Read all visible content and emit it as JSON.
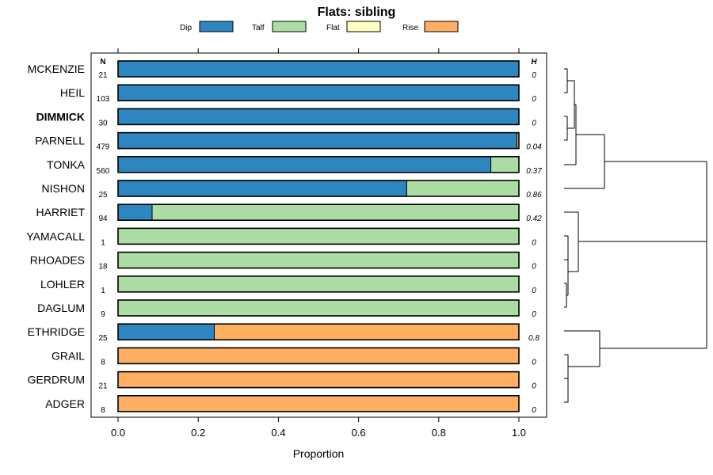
{
  "chart_data": {
    "type": "bar",
    "orientation": "horizontal",
    "stacked": true,
    "title": "Flats: sibling",
    "xlabel": "Proportion",
    "ylabel": "",
    "xlim": [
      -0.07,
      1.07
    ],
    "x_ticks": [
      0.0,
      0.2,
      0.4,
      0.6,
      0.8,
      1.0
    ],
    "x_tick_labels": [
      "0.0",
      "0.2",
      "0.4",
      "0.6",
      "0.8",
      "1.0"
    ],
    "legend": {
      "placement": "top",
      "entries": [
        {
          "name": "Dip",
          "color": "#2e86c1"
        },
        {
          "name": "Talf",
          "color": "#abdda4"
        },
        {
          "name": "Flat",
          "color": "#ffffbf"
        },
        {
          "name": "Rise",
          "color": "#fdae61"
        }
      ]
    },
    "n_header": "N",
    "h_header": "H",
    "highlight_category": "DIMMICK",
    "categories": [
      "MCKENZIE",
      "HEIL",
      "DIMMICK",
      "PARNELL",
      "TONKA",
      "NISHON",
      "HARRIET",
      "YAMACALL",
      "RHOADES",
      "LOHLER",
      "DAGLUM",
      "ETHRIDGE",
      "GRAIL",
      "GERDRUM",
      "ADGER"
    ],
    "n_values": [
      "21",
      "103",
      "30",
      "479",
      "560",
      "25",
      "94",
      "1",
      "18",
      "1",
      "9",
      "25",
      "8",
      "21",
      "8"
    ],
    "h_values": [
      "0",
      "0",
      "0",
      "0.04",
      "0.37",
      "0.86",
      "0.42",
      "0",
      "0",
      "0",
      "0",
      "0.8",
      "0",
      "0",
      "0"
    ],
    "series": [
      {
        "name": "Dip",
        "values": [
          1.0,
          1.0,
          1.0,
          0.995,
          0.93,
          0.72,
          0.085,
          0,
          0,
          0,
          0,
          0.24,
          0,
          0,
          0
        ]
      },
      {
        "name": "Talf",
        "values": [
          0,
          0,
          0,
          0,
          0.07,
          0.28,
          0.915,
          1.0,
          1.0,
          1.0,
          1.0,
          0,
          0,
          0,
          0
        ]
      },
      {
        "name": "Flat",
        "values": [
          0,
          0,
          0,
          0,
          0,
          0,
          0,
          0,
          0,
          0,
          0,
          0,
          0,
          0,
          0
        ]
      },
      {
        "name": "Rise",
        "values": [
          0,
          0,
          0,
          0.005,
          0,
          0,
          0,
          0,
          0,
          0,
          0,
          0.76,
          1.0,
          1.0,
          1.0
        ]
      }
    ],
    "dendrogram": {
      "description": "hierarchical clustering of rows",
      "groups": [
        [
          "MCKENZIE",
          "HEIL",
          "DIMMICK",
          "PARNELL",
          "TONKA",
          "NISHON"
        ],
        [
          "HARRIET",
          "YAMACALL",
          "RHOADES",
          "LOHLER",
          "DAGLUM"
        ],
        [
          "ETHRIDGE",
          "GRAIL",
          "GERDRUM",
          "ADGER"
        ]
      ]
    }
  }
}
